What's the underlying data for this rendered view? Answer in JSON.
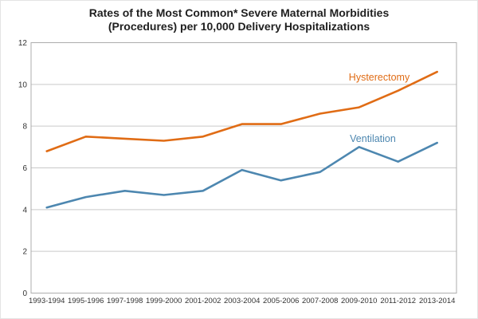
{
  "title": {
    "line1": "Rates of the Most Common* Severe Maternal Morbidities",
    "line2": "(Procedures) per 10,000 Delivery Hospitalizations"
  },
  "chart_data": {
    "type": "line",
    "title": "Rates of the Most Common* Severe Maternal Morbidities (Procedures) per 10,000 Delivery Hospitalizations",
    "categories": [
      "1993-1994",
      "1995-1996",
      "1997-1998",
      "1999-2000",
      "2001-2002",
      "2003-2004",
      "2005-2006",
      "2007-2008",
      "2009-2010",
      "2011-2012",
      "2013-2014"
    ],
    "series": [
      {
        "name": "Hysterectomy",
        "color": "#e06c15",
        "values": [
          6.8,
          7.5,
          7.4,
          7.3,
          7.5,
          8.1,
          8.1,
          8.6,
          8.9,
          9.7,
          10.6
        ],
        "label": {
          "text": "Hysterectomy",
          "x": 475,
          "y": 100
        }
      },
      {
        "name": "Ventilation",
        "color": "#4d87b0",
        "values": [
          4.1,
          4.6,
          4.9,
          4.7,
          4.9,
          5.9,
          5.4,
          5.8,
          7.0,
          6.3,
          7.2
        ],
        "label": {
          "text": "Ventilation",
          "x": 467,
          "y": 177
        }
      }
    ],
    "xlabel": "",
    "ylabel": "",
    "ylim": [
      0,
      12
    ],
    "yticks": [
      0,
      2,
      4,
      6,
      8,
      10,
      12
    ],
    "grid": true,
    "legend": "inline-labels"
  }
}
